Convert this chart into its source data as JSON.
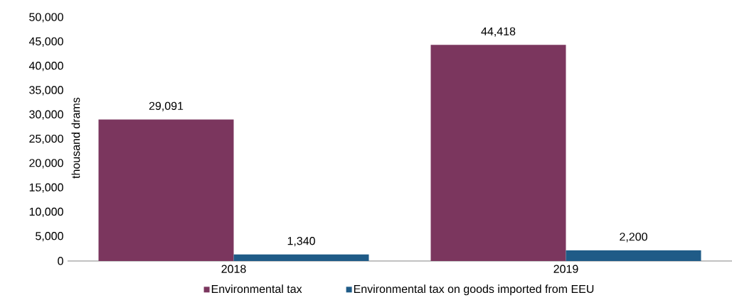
{
  "chart_data": {
    "type": "bar",
    "ylabel": "thousand drams",
    "categories": [
      "2018",
      "2019"
    ],
    "series": [
      {
        "name": "Environmental tax",
        "color": "#7b365e",
        "values": [
          29091,
          44418
        ],
        "value_labels": [
          "29,091",
          "44,418"
        ]
      },
      {
        "name": "Environmental tax on goods imported from EEU",
        "color": "#1f5b87",
        "values": [
          1340,
          2200
        ],
        "value_labels": [
          "1,340",
          "2,200"
        ]
      }
    ],
    "ylim": [
      0,
      50000
    ],
    "yticks": [
      0,
      {
        "value": 5000,
        "label": "5,000"
      },
      {
        "value": 10000,
        "label": "10,000"
      },
      {
        "value": 15000,
        "label": "15,000"
      },
      {
        "value": 20000,
        "label": "20,000"
      },
      {
        "value": 25000,
        "label": "25,000"
      },
      {
        "value": 30000,
        "label": "30,000"
      },
      {
        "value": 35000,
        "label": "35,000"
      },
      {
        "value": 40000,
        "label": "40,000"
      },
      {
        "value": 45000,
        "label": "45,000"
      },
      {
        "value": 50000,
        "label": "50,000"
      }
    ],
    "grid": false,
    "legend": "bottom"
  }
}
